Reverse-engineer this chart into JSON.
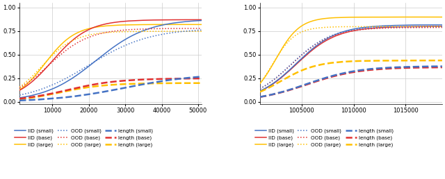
{
  "colors": {
    "small": "#4472C4",
    "base": "#E03030",
    "large": "#FFC000"
  },
  "plot1": {
    "xlim": [
      1000,
      51000
    ],
    "ylim": [
      -0.02,
      1.05
    ],
    "xticks": [
      10000,
      20000,
      30000,
      40000,
      50000
    ],
    "yticks": [
      0.0,
      0.25,
      0.5,
      0.75,
      1.0
    ]
  },
  "plot2": {
    "xlim": [
      1001000,
      1018500
    ],
    "ylim": [
      -0.02,
      1.05
    ],
    "xticks": [
      1005000,
      1010000,
      1015000
    ],
    "yticks": [
      0.0,
      0.25,
      0.5,
      0.75,
      1.0
    ]
  },
  "legend_entries_col1": [
    {
      "label": "IID (small)",
      "color": "#4472C4",
      "ls": "solid"
    },
    {
      "label": "IID (base)",
      "color": "#E03030",
      "ls": "solid"
    },
    {
      "label": "IID (large)",
      "color": "#FFC000",
      "ls": "solid"
    }
  ],
  "legend_entries_col2": [
    {
      "label": "OOD (small)",
      "color": "#4472C4",
      "ls": "dotted"
    },
    {
      "label": "OOD (base)",
      "color": "#E03030",
      "ls": "dotted"
    },
    {
      "label": "OOD (large)",
      "color": "#FFC000",
      "ls": "dotted"
    }
  ],
  "legend_entries_col3": [
    {
      "label": "length (small)",
      "color": "#4472C4",
      "ls": "dashed"
    },
    {
      "label": "length (base)",
      "color": "#E03030",
      "ls": "dashed"
    },
    {
      "label": "length (large)",
      "color": "#FFC000",
      "ls": "dashed"
    }
  ]
}
